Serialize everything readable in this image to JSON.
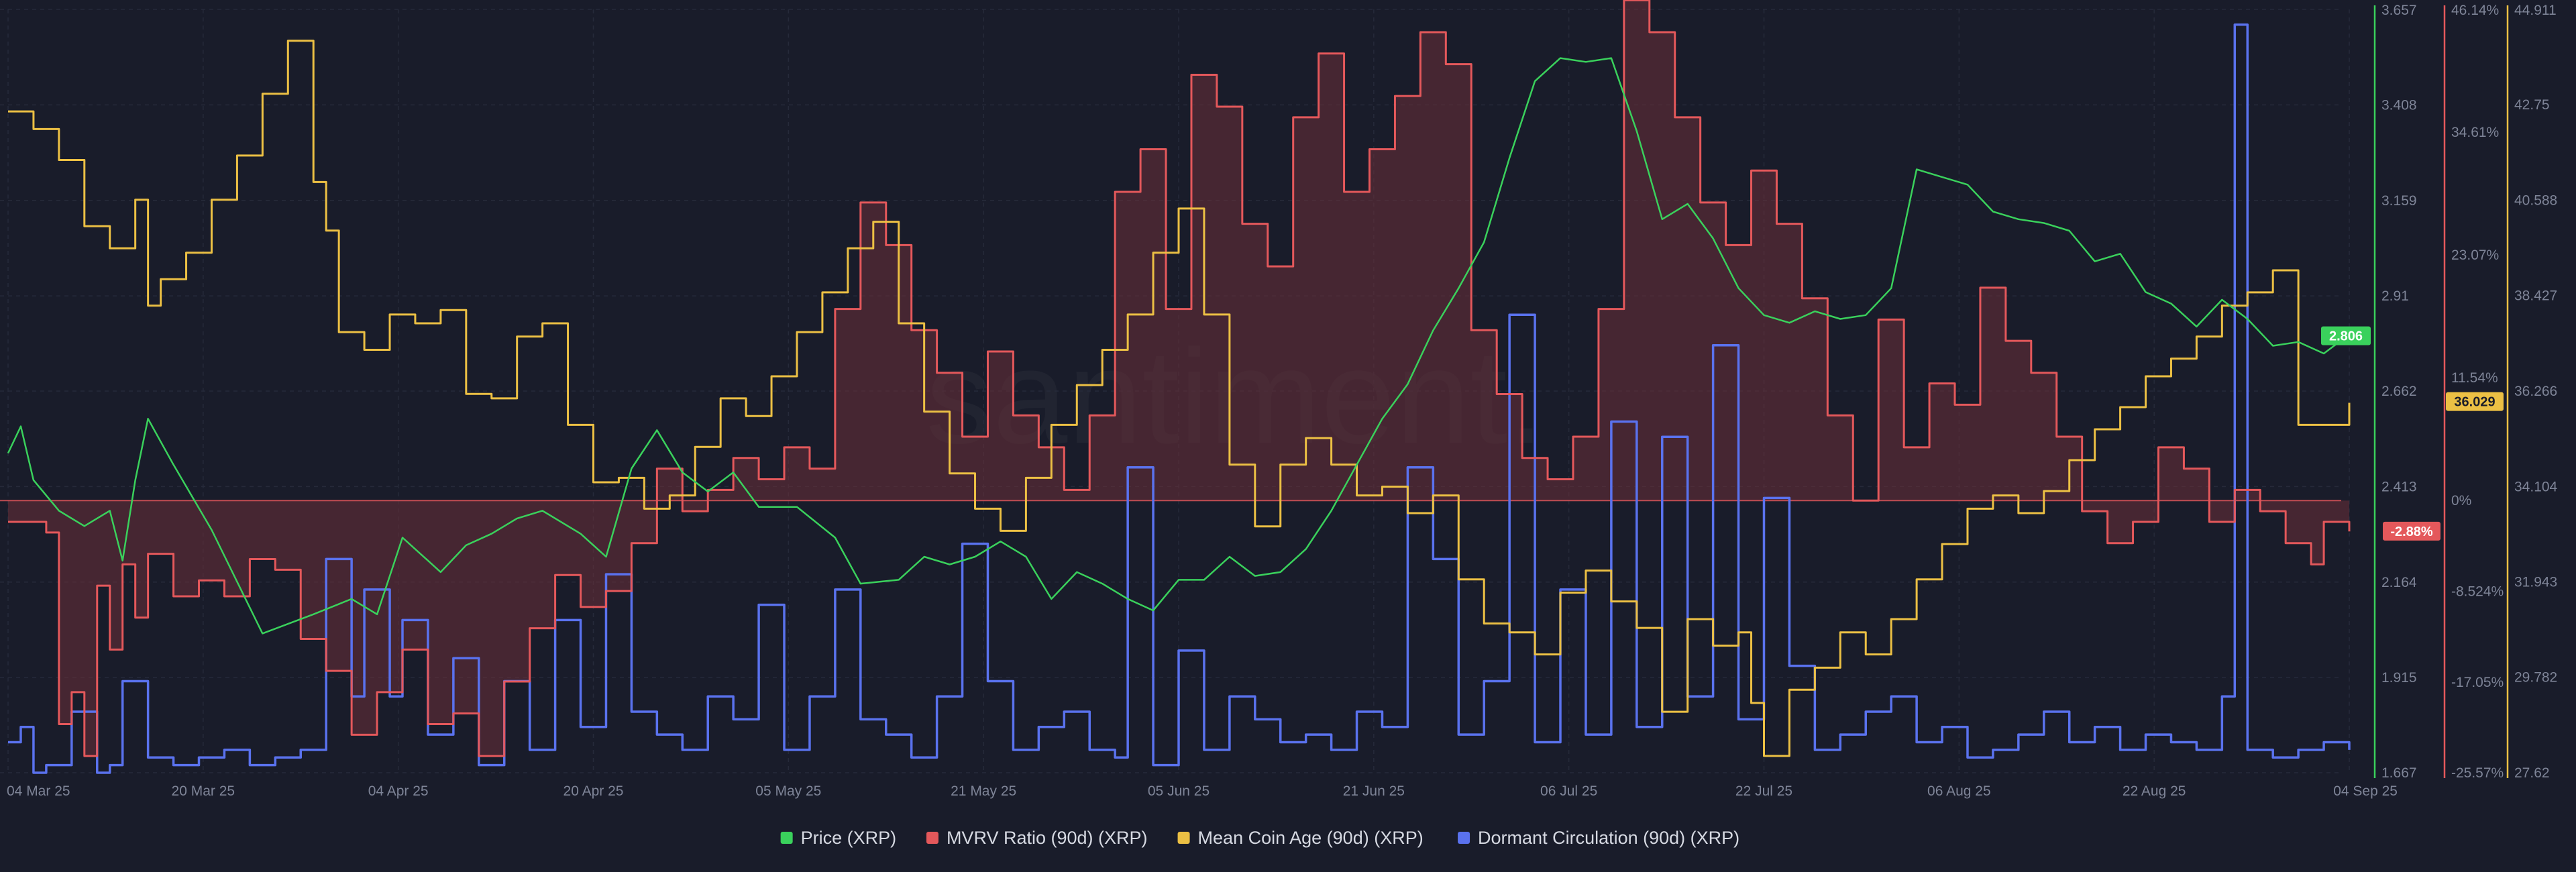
{
  "watermark": "santiment.",
  "colors": {
    "background": "#191c2a",
    "grid": "#262a3a",
    "price": "#3ad15c",
    "mvrv": "#e4585b",
    "mvrv_fill": "#6b2f38",
    "coin_age": "#ecc044",
    "dormant": "#5a72ee"
  },
  "chart_data": {
    "type": "line",
    "x_tick_labels": [
      "04 Mar 25",
      "20 Mar 25",
      "04 Apr 25",
      "20 Apr 25",
      "05 May 25",
      "21 May 25",
      "05 Jun 25",
      "21 Jun 25",
      "06 Jul 25",
      "22 Jul 25",
      "06 Aug 25",
      "22 Aug 25",
      "04 Sep 25"
    ],
    "x_range": [
      "04 Mar 25",
      "04 Sep 25"
    ],
    "grid": true,
    "legend_position": "bottom-center",
    "axes": {
      "price": {
        "ticks": [
          "3.657",
          "3.408",
          "3.159",
          "2.91",
          "2.662",
          "2.413",
          "2.164",
          "1.915",
          "1.667"
        ],
        "range": [
          1.667,
          3.657
        ],
        "current": "2.806"
      },
      "mvrv": {
        "ticks": [
          "46.14%",
          "34.61%",
          "23.07%",
          "11.54%",
          "0%",
          "-8.524%",
          "-17.05%",
          "-25.57%"
        ],
        "range": [
          -25.57,
          46.14
        ],
        "current": "-2.88%"
      },
      "coin_age": {
        "ticks": [
          "44.911",
          "42.75",
          "40.588",
          "38.427",
          "36.266",
          "34.104",
          "31.943",
          "29.782",
          "27.62"
        ],
        "range": [
          27.62,
          44.911
        ],
        "current": "36.029"
      },
      "dormant": {
        "range": [
          0,
          1
        ]
      }
    },
    "series": [
      {
        "name": "Price (XRP)",
        "key": "price",
        "axis": "price",
        "x": [
          0,
          1,
          2,
          4,
          6,
          8,
          9,
          10,
          11,
          13,
          16,
          20,
          24,
          27,
          29,
          31,
          34,
          36,
          38,
          40,
          42,
          45,
          47,
          49,
          51,
          53,
          55,
          57,
          59,
          62,
          65,
          67,
          70,
          72,
          74,
          76,
          78,
          80,
          82,
          84,
          86,
          88,
          90,
          92,
          94,
          96,
          98,
          100,
          102,
          104,
          106,
          108,
          110,
          112,
          114,
          116,
          118,
          120,
          122,
          124,
          126,
          128,
          130,
          132,
          134,
          136,
          138,
          140,
          142,
          144,
          146,
          148,
          150,
          152,
          154,
          156,
          158,
          160,
          162,
          164,
          166,
          168,
          170,
          172,
          174,
          176,
          178,
          180,
          182,
          184
        ],
        "values": [
          2.5,
          2.57,
          2.43,
          2.35,
          2.31,
          2.35,
          2.22,
          2.43,
          2.59,
          2.47,
          2.3,
          2.03,
          2.08,
          2.12,
          2.08,
          2.28,
          2.19,
          2.26,
          2.29,
          2.33,
          2.35,
          2.29,
          2.23,
          2.46,
          2.56,
          2.45,
          2.4,
          2.45,
          2.36,
          2.36,
          2.28,
          2.16,
          2.17,
          2.23,
          2.21,
          2.23,
          2.27,
          2.23,
          2.12,
          2.19,
          2.16,
          2.12,
          2.09,
          2.17,
          2.17,
          2.23,
          2.18,
          2.19,
          2.25,
          2.35,
          2.47,
          2.59,
          2.68,
          2.82,
          2.93,
          3.05,
          3.27,
          3.47,
          3.53,
          3.52,
          3.53,
          3.34,
          3.11,
          3.15,
          3.06,
          2.93,
          2.86,
          2.84,
          2.87,
          2.85,
          2.86,
          2.93,
          3.24,
          3.22,
          3.2,
          3.13,
          3.11,
          3.1,
          3.08,
          3.0,
          3.02,
          2.92,
          2.89,
          2.83,
          2.9,
          2.85,
          2.78,
          2.79,
          2.76,
          2.81
        ]
      },
      {
        "name": "MVRV Ratio (90d) (XRP)",
        "key": "mvrv",
        "axis": "mvrv",
        "x": [
          0,
          3,
          4,
          5,
          6,
          7,
          8,
          9,
          10,
          11,
          13,
          15,
          17,
          19,
          21,
          23,
          25,
          27,
          29,
          31,
          33,
          35,
          37,
          39,
          41,
          43,
          45,
          47,
          49,
          51,
          53,
          55,
          57,
          59,
          61,
          63,
          65,
          67,
          69,
          71,
          73,
          75,
          77,
          79,
          81,
          83,
          85,
          87,
          89,
          91,
          93,
          95,
          97,
          99,
          101,
          103,
          105,
          107,
          109,
          111,
          113,
          115,
          117,
          119,
          121,
          123,
          125,
          127,
          129,
          131,
          133,
          135,
          137,
          139,
          141,
          143,
          145,
          147,
          149,
          151,
          153,
          155,
          157,
          159,
          161,
          163,
          165,
          167,
          169,
          171,
          173,
          175,
          177,
          179,
          181,
          182,
          184
        ],
        "values": [
          -2.0,
          -3.0,
          -21.0,
          -18.0,
          -24.0,
          -8.0,
          -14.0,
          -6.0,
          -11.0,
          -5.0,
          -9.0,
          -7.5,
          -9.0,
          -5.5,
          -6.5,
          -13.0,
          -16.0,
          -22.0,
          -18.0,
          -14.0,
          -21.0,
          -20.0,
          -24.0,
          -17.0,
          -12.0,
          -7.0,
          -10.0,
          -8.5,
          -4.0,
          3.0,
          -1.0,
          1.0,
          4.0,
          2.0,
          5.0,
          3.0,
          18.0,
          28.0,
          24.0,
          16.0,
          12.0,
          6.0,
          14.0,
          8.0,
          5.0,
          1.0,
          8.0,
          29.0,
          33.0,
          18.0,
          40.0,
          37.0,
          26.0,
          22.0,
          36.0,
          42.0,
          29.0,
          33.0,
          38.0,
          44.0,
          41.0,
          16.0,
          10.0,
          4.0,
          2.0,
          6.0,
          18.0,
          47.0,
          44.0,
          36.0,
          28.0,
          24.0,
          31.0,
          26.0,
          19.0,
          8.0,
          0.0,
          17.0,
          5.0,
          11.0,
          9.0,
          20.0,
          15.0,
          12.0,
          6.0,
          -1.0,
          -4.0,
          -2.0,
          5.0,
          3.0,
          -2.0,
          1.0,
          -1.0,
          -4.0,
          -6.0,
          -2.0,
          -2.9
        ]
      },
      {
        "name": "Mean Coin Age (90d) (XRP)",
        "key": "coin_age",
        "axis": "coin_age",
        "x": [
          0,
          2,
          4,
          6,
          8,
          10,
          11,
          12,
          14,
          16,
          18,
          20,
          22,
          24,
          25,
          26,
          28,
          30,
          32,
          34,
          36,
          38,
          40,
          42,
          44,
          46,
          48,
          50,
          52,
          54,
          56,
          58,
          60,
          62,
          64,
          66,
          68,
          70,
          72,
          74,
          76,
          78,
          80,
          82,
          84,
          86,
          88,
          90,
          92,
          94,
          96,
          98,
          100,
          102,
          104,
          106,
          108,
          110,
          112,
          114,
          116,
          118,
          120,
          122,
          124,
          126,
          128,
          130,
          132,
          134,
          136,
          137,
          138,
          140,
          142,
          144,
          146,
          148,
          150,
          152,
          154,
          156,
          158,
          160,
          162,
          164,
          166,
          168,
          170,
          172,
          174,
          176,
          178,
          180,
          182,
          184
        ],
        "values": [
          42.6,
          42.2,
          41.5,
          40.0,
          39.5,
          40.6,
          38.2,
          38.8,
          39.4,
          40.6,
          41.6,
          43.0,
          44.2,
          41.0,
          39.9,
          37.6,
          37.2,
          38.0,
          37.8,
          38.1,
          36.2,
          36.1,
          37.5,
          37.8,
          35.5,
          34.2,
          34.3,
          33.6,
          33.9,
          35.0,
          36.1,
          35.7,
          36.6,
          37.6,
          38.5,
          39.5,
          40.1,
          37.8,
          35.8,
          34.4,
          33.6,
          33.1,
          34.3,
          35.5,
          36.4,
          37.2,
          38.0,
          39.4,
          40.4,
          38.0,
          34.6,
          33.2,
          34.6,
          35.2,
          34.6,
          33.9,
          34.1,
          33.5,
          33.9,
          32.0,
          31.0,
          30.8,
          30.3,
          31.7,
          32.2,
          31.5,
          30.9,
          29.0,
          31.1,
          30.5,
          30.8,
          29.2,
          28.0,
          29.5,
          30.0,
          30.8,
          30.3,
          31.1,
          32.0,
          32.8,
          33.6,
          33.9,
          33.5,
          34.0,
          34.7,
          35.4,
          35.9,
          36.6,
          37.0,
          37.5,
          38.2,
          38.5,
          39.0,
          35.5,
          35.5,
          36.0
        ]
      },
      {
        "name": "Dormant Circulation (90d) (XRP)",
        "key": "dormant",
        "axis": "dormant",
        "x": [
          0,
          1,
          2,
          3,
          5,
          7,
          8,
          9,
          11,
          13,
          15,
          17,
          19,
          21,
          23,
          25,
          27,
          28,
          30,
          31,
          33,
          35,
          37,
          39,
          41,
          43,
          45,
          47,
          49,
          51,
          53,
          55,
          57,
          59,
          61,
          63,
          65,
          67,
          69,
          71,
          73,
          75,
          77,
          79,
          81,
          83,
          85,
          87,
          88,
          90,
          92,
          94,
          96,
          98,
          100,
          102,
          104,
          106,
          108,
          110,
          112,
          114,
          116,
          118,
          120,
          122,
          124,
          126,
          128,
          130,
          132,
          134,
          136,
          138,
          140,
          142,
          144,
          146,
          148,
          150,
          152,
          154,
          156,
          158,
          160,
          162,
          164,
          166,
          168,
          170,
          172,
          174,
          175,
          176,
          178,
          180,
          182,
          184
        ],
        "values": [
          0.04,
          0.06,
          0.0,
          0.01,
          0.08,
          0.0,
          0.01,
          0.12,
          0.02,
          0.01,
          0.02,
          0.03,
          0.01,
          0.02,
          0.03,
          0.28,
          0.1,
          0.24,
          0.1,
          0.2,
          0.05,
          0.15,
          0.01,
          0.12,
          0.03,
          0.2,
          0.06,
          0.26,
          0.08,
          0.05,
          0.03,
          0.1,
          0.07,
          0.22,
          0.03,
          0.1,
          0.24,
          0.07,
          0.05,
          0.02,
          0.1,
          0.3,
          0.12,
          0.03,
          0.06,
          0.08,
          0.03,
          0.02,
          0.4,
          0.01,
          0.16,
          0.03,
          0.1,
          0.07,
          0.04,
          0.05,
          0.03,
          0.08,
          0.06,
          0.4,
          0.28,
          0.05,
          0.12,
          0.6,
          0.04,
          0.24,
          0.05,
          0.46,
          0.06,
          0.44,
          0.1,
          0.56,
          0.07,
          0.36,
          0.14,
          0.03,
          0.05,
          0.08,
          0.1,
          0.04,
          0.06,
          0.02,
          0.03,
          0.05,
          0.08,
          0.04,
          0.06,
          0.03,
          0.05,
          0.04,
          0.03,
          0.1,
          0.98,
          0.03,
          0.02,
          0.03,
          0.04,
          0.03
        ]
      }
    ]
  },
  "legend": [
    {
      "key": "price",
      "label": "Price (XRP)"
    },
    {
      "key": "mvrv",
      "label": "MVRV Ratio (90d) (XRP)"
    },
    {
      "key": "coin_age",
      "label": "Mean Coin Age (90d) (XRP)"
    },
    {
      "key": "dormant",
      "label": "Dormant Circulation (90d) (XRP)"
    }
  ]
}
